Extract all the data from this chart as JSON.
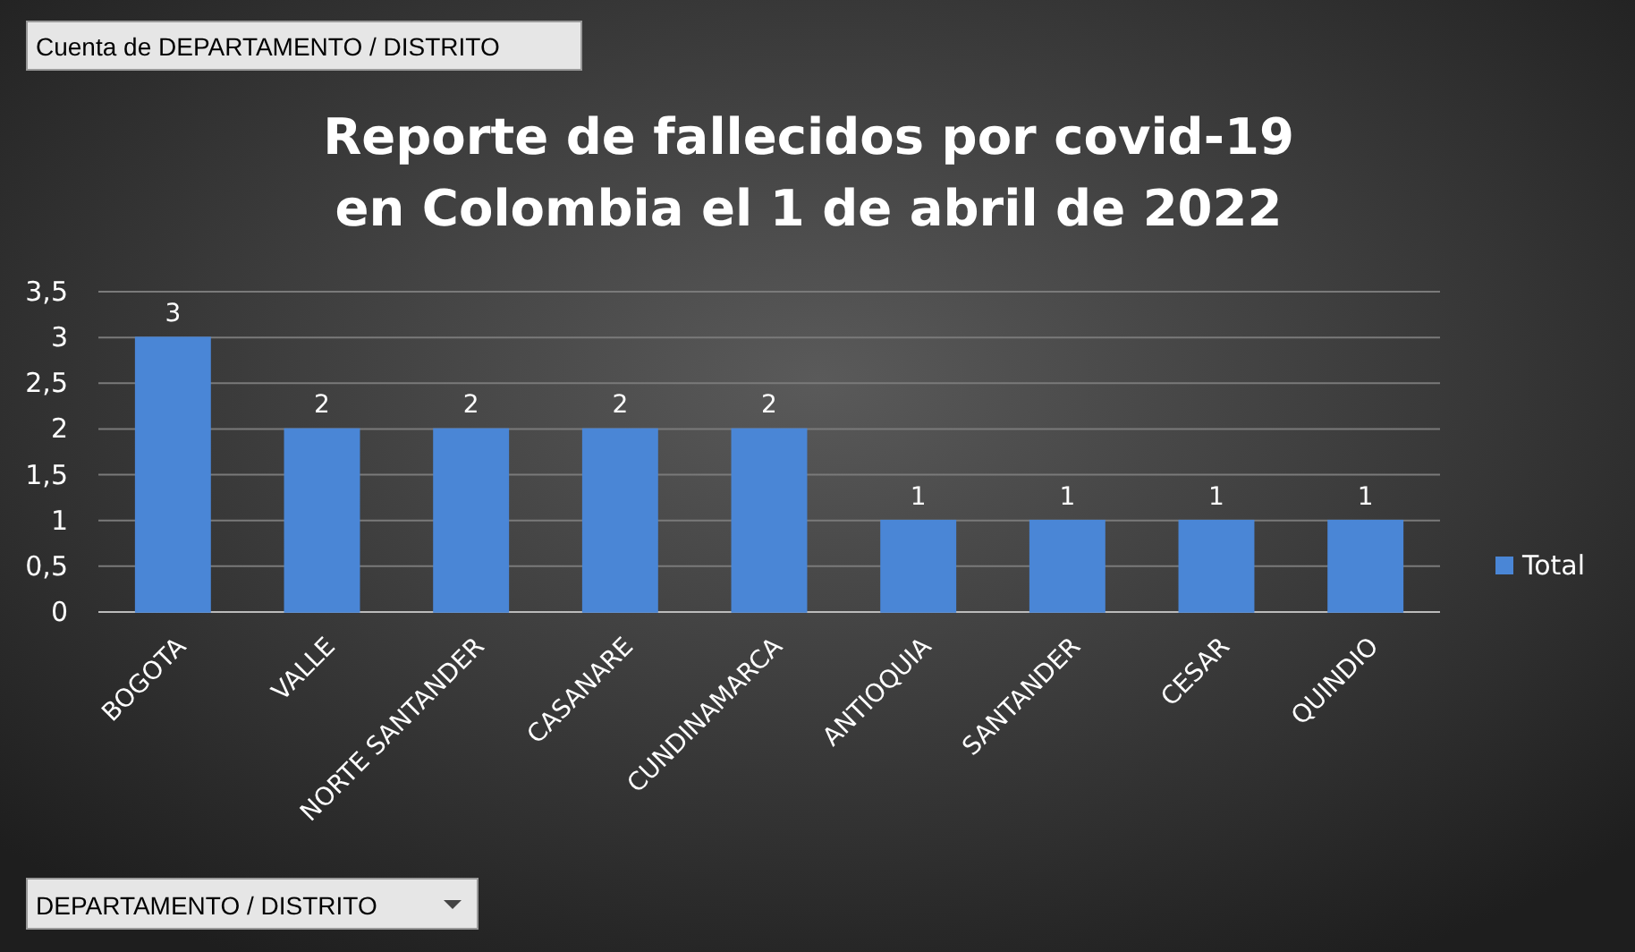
{
  "chart_data": {
    "type": "bar",
    "title": "Reporte de fallecidos por covid-19\nen Colombia el 1 de abril de 2022",
    "categories": [
      "BOGOTA",
      "VALLE",
      "NORTE SANTANDER",
      "CASANARE",
      "CUNDINAMARCA",
      "ANTIOQUIA",
      "SANTANDER",
      "CESAR",
      "QUINDIO"
    ],
    "series": [
      {
        "name": "Total",
        "color": "#4a86d6",
        "values": [
          3,
          2,
          2,
          2,
          2,
          1,
          1,
          1,
          1
        ]
      }
    ],
    "ylim": [
      0,
      3.5
    ],
    "yticks": [
      0,
      {
        "value": 0.5,
        "label": "0,5"
      },
      1,
      {
        "value": 1.5,
        "label": "1,5"
      },
      2,
      {
        "value": 2.5,
        "label": "2,5"
      },
      3,
      {
        "value": 3.5,
        "label": "3,5"
      }
    ],
    "grid": "y",
    "legend": "right",
    "data_labels": true,
    "annotations": [
      "Cuenta de DEPARTAMENTO / DISTRITO",
      "DEPARTAMENTO / DISTRITO"
    ]
  }
}
